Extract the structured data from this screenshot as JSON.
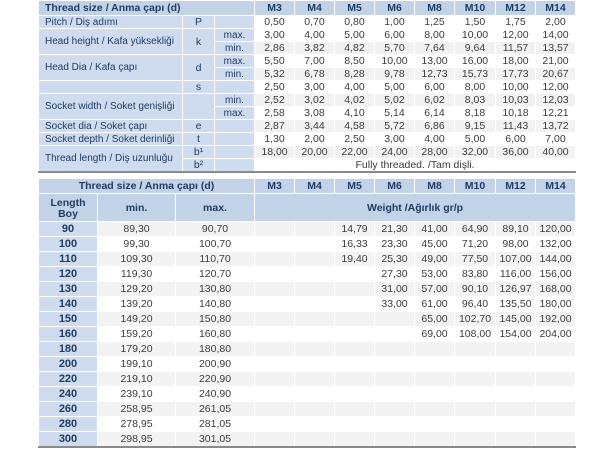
{
  "colors": {
    "header_blue": "#c2d3e7",
    "label_blue": "#cfdcef",
    "navy_text": "#1e3c64",
    "value_text": "#3c3c3c",
    "stripe_gray": "#f2f2f2",
    "table_border": "#8a8a8a"
  },
  "table1": {
    "title": "Thread size / Anma çapı (d)",
    "sizes": [
      "M3",
      "M4",
      "M5",
      "M6",
      "M8",
      "M10",
      "M12",
      "M14"
    ],
    "rows": [
      {
        "label": "Pitch / Diş adımı",
        "label_rows": 1,
        "symbol": "P",
        "symbol_rows": 1,
        "sub": "",
        "values": [
          "0,50",
          "0,70",
          "0,80",
          "1,00",
          "1,25",
          "1,50",
          "1,75",
          "2,00"
        ]
      },
      {
        "label": "Head height / Kafa yüksekliği",
        "label_rows": 2,
        "symbol": "k",
        "symbol_rows": 2,
        "sub": "max.",
        "values": [
          "3,00",
          "4,00",
          "5,00",
          "6,00",
          "8,00",
          "10,00",
          "12,00",
          "14,00"
        ]
      },
      {
        "sub": "min.",
        "values": [
          "2,86",
          "3,82",
          "4,82",
          "5,70",
          "7,64",
          "9,64",
          "11,57",
          "13,57"
        ]
      },
      {
        "label": "Head Dia / Kafa çapı",
        "label_rows": 2,
        "symbol": "d",
        "symbol_rows": 2,
        "sub": "max.",
        "values": [
          "5,50",
          "7,00",
          "8,50",
          "10,00",
          "13,00",
          "16,00",
          "18,00",
          "21,00"
        ]
      },
      {
        "sub": "min.",
        "values": [
          "5,32",
          "6,78",
          "8,28",
          "9,78",
          "12,73",
          "15,73",
          "17,73",
          "20,67"
        ]
      },
      {
        "label": "",
        "label_rows": 1,
        "symbol": "s",
        "symbol_rows": 1,
        "sub": "",
        "values": [
          "2,50",
          "3,00",
          "4,00",
          "5,00",
          "6,00",
          "8,00",
          "10,00",
          "12,00"
        ]
      },
      {
        "label": "Socket width / Soket genişliği",
        "label_rows": 2,
        "symbol": "",
        "symbol_rows": 2,
        "sub": "min.",
        "values": [
          "2,52",
          "3,02",
          "4,02",
          "5,02",
          "6,02",
          "8,03",
          "10,03",
          "12,03"
        ]
      },
      {
        "sub": "max.",
        "values": [
          "2,58",
          "3,08",
          "4,10",
          "5,14",
          "6,14",
          "8,18",
          "10,18",
          "12,21"
        ]
      },
      {
        "label": "Socket dia / Soket çapı",
        "label_rows": 1,
        "symbol": "e",
        "symbol_rows": 1,
        "sub": "",
        "values": [
          "2,87",
          "3,44",
          "4,58",
          "5,72",
          "6,86",
          "9,15",
          "11,43",
          "13,72"
        ]
      },
      {
        "label": "Socket depth / Soket derinliği",
        "label_rows": 1,
        "symbol": "t",
        "symbol_rows": 1,
        "sub": "",
        "values": [
          "1,30",
          "2,00",
          "2,50",
          "3,00",
          "4,00",
          "5,00",
          "6,00",
          "7,00"
        ]
      },
      {
        "label": "Thread length / Diş uzunluğu",
        "label_rows": 2,
        "symbol": "b¹",
        "symbol_rows": 1,
        "sub": "",
        "values": [
          "18,00",
          "20,00",
          "22,00",
          "24,00",
          "28,00",
          "32,00",
          "36,00",
          "40,00"
        ]
      },
      {
        "symbol": "b²",
        "symbol_rows": 1,
        "sub": "",
        "merged": "Fully threaded. /Tam dişli."
      }
    ]
  },
  "table2": {
    "title": "Thread size / Anma çapı (d)",
    "sizes": [
      "M3",
      "M4",
      "M5",
      "M6",
      "M8",
      "M10",
      "M12",
      "M14"
    ],
    "length_header_line1": "Length",
    "length_header_line2": "Boy",
    "min_header": "min.",
    "max_header": "max.",
    "weight_header": "Weight /Ağırlık gr/p",
    "rows": [
      {
        "length": "90",
        "min": "89,30",
        "max": "90,70",
        "weights": [
          "",
          "",
          "14,79",
          "21,30",
          "41,00",
          "64,90",
          "89,10",
          "120,00"
        ]
      },
      {
        "length": "100",
        "min": "99,30",
        "max": "100,70",
        "weights": [
          "",
          "",
          "16,33",
          "23,30",
          "45,00",
          "71,20",
          "98,00",
          "132,00"
        ]
      },
      {
        "length": "110",
        "min": "109,30",
        "max": "110,70",
        "weights": [
          "",
          "",
          "19,40",
          "25,30",
          "49,00",
          "77,50",
          "107,00",
          "144,00"
        ]
      },
      {
        "length": "120",
        "min": "119,30",
        "max": "120,70",
        "weights": [
          "",
          "",
          "",
          "27,30",
          "53,00",
          "83,80",
          "116,00",
          "156,00"
        ]
      },
      {
        "length": "130",
        "min": "129,20",
        "max": "130,80",
        "weights": [
          "",
          "",
          "",
          "31,00",
          "57,00",
          "90,10",
          "126,97",
          "168,00"
        ]
      },
      {
        "length": "140",
        "min": "139,20",
        "max": "140,80",
        "weights": [
          "",
          "",
          "",
          "33,00",
          "61,00",
          "96,40",
          "135,50",
          "180,00"
        ]
      },
      {
        "length": "150",
        "min": "149,20",
        "max": "150,80",
        "weights": [
          "",
          "",
          "",
          "",
          "65,00",
          "102,70",
          "145,00",
          "192,00"
        ]
      },
      {
        "length": "160",
        "min": "159,20",
        "max": "160,80",
        "weights": [
          "",
          "",
          "",
          "",
          "69,00",
          "108,00",
          "154,00",
          "204,00"
        ]
      },
      {
        "length": "180",
        "min": "179,20",
        "max": "180,80",
        "weights": [
          "",
          "",
          "",
          "",
          "",
          "",
          "",
          ""
        ]
      },
      {
        "length": "200",
        "min": "199,10",
        "max": "200,90",
        "weights": [
          "",
          "",
          "",
          "",
          "",
          "",
          "",
          ""
        ]
      },
      {
        "length": "220",
        "min": "219,10",
        "max": "220,90",
        "weights": [
          "",
          "",
          "",
          "",
          "",
          "",
          "",
          ""
        ]
      },
      {
        "length": "240",
        "min": "239,10",
        "max": "240,90",
        "weights": [
          "",
          "",
          "",
          "",
          "",
          "",
          "",
          ""
        ]
      },
      {
        "length": "260",
        "min": "258,95",
        "max": "261,05",
        "weights": [
          "",
          "",
          "",
          "",
          "",
          "",
          "",
          ""
        ]
      },
      {
        "length": "280",
        "min": "278,95",
        "max": "281,05",
        "weights": [
          "",
          "",
          "",
          "",
          "",
          "",
          "",
          ""
        ]
      },
      {
        "length": "300",
        "min": "298,95",
        "max": "301,05",
        "weights": [
          "",
          "",
          "",
          "",
          "",
          "",
          "",
          ""
        ]
      }
    ]
  }
}
